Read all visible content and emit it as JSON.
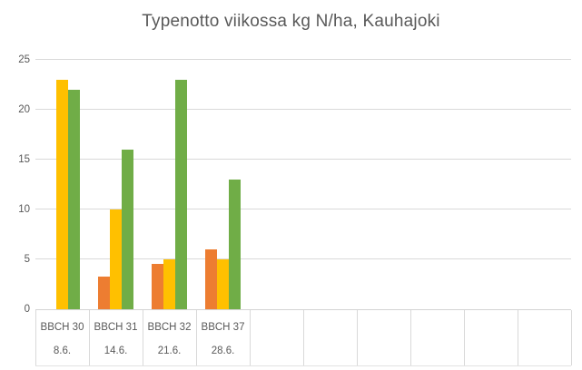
{
  "title": "Typenotto viikossa kg N/ha, Kauhajoki",
  "colors": {
    "title_text": "#595959",
    "axis_text": "#595959",
    "gridline": "#D9D9D9",
    "axis_line": "#D9D9D9",
    "background": "#FFFFFF",
    "series_orange": "#ED7D31",
    "series_yellow": "#FFC000",
    "series_green": "#70AD47"
  },
  "chart_data": {
    "type": "bar",
    "title": "Typenotto viikossa kg N/ha, Kauhajoki",
    "categories": [
      {
        "label": "BBCH 30",
        "sublabel": "8.6."
      },
      {
        "label": "BBCH 31",
        "sublabel": "14.6."
      },
      {
        "label": "BBCH 32",
        "sublabel": "21.6."
      },
      {
        "label": "BBCH 37",
        "sublabel": "28.6."
      }
    ],
    "series": [
      {
        "name": "orange",
        "color": "#ED7D31",
        "values": [
          0,
          3.3,
          4.5,
          6
        ]
      },
      {
        "name": "yellow",
        "color": "#FFC000",
        "values": [
          23,
          10,
          5,
          5
        ]
      },
      {
        "name": "green",
        "color": "#70AD47",
        "values": [
          22,
          16,
          23,
          13
        ]
      }
    ],
    "xlabel": "",
    "ylabel": "",
    "ylim": [
      0,
      25
    ],
    "yticks": [
      0,
      5,
      10,
      15,
      20,
      25
    ],
    "grid": true,
    "legend": "none",
    "empty_trailing_cells": 6
  }
}
